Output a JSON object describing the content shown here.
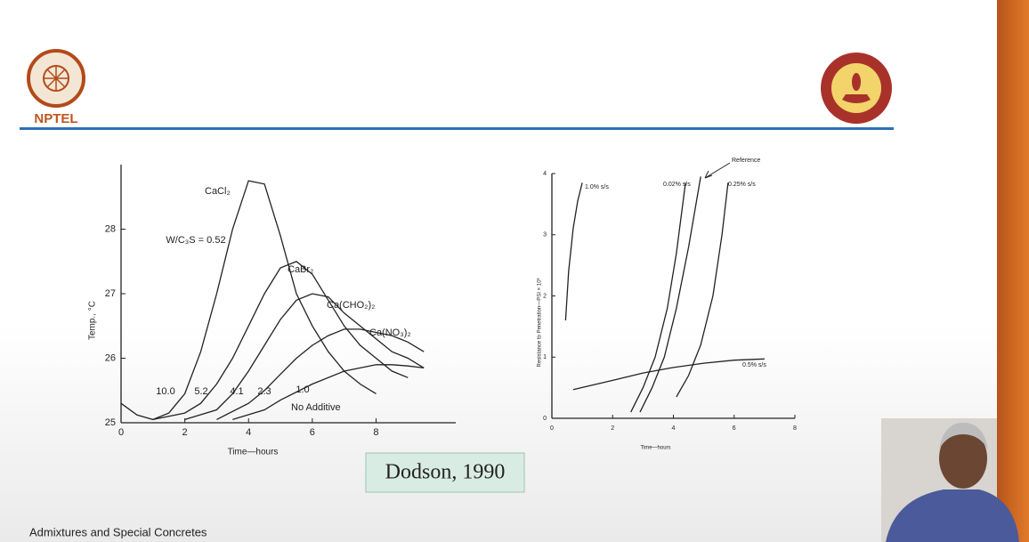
{
  "header": {
    "logo_text": "NPTEL"
  },
  "caption": "Dodson, 1990",
  "footer": "Admixtures and Special Concretes",
  "chart_data": [
    {
      "type": "line",
      "xlabel": "Time—hours",
      "ylabel": "Temp., °C",
      "xlim": [
        0,
        10.5
      ],
      "ylim": [
        25,
        29
      ],
      "xticks": [
        0,
        2,
        4,
        6,
        8
      ],
      "yticks": [
        25,
        26,
        27,
        28
      ],
      "annotations": [
        "W/C₃S = 0.52",
        "10.0",
        "5.2",
        "4.1",
        "2.3",
        "1.0"
      ],
      "series": [
        {
          "name": "CaCl₂",
          "color": "#222222",
          "x": [
            0,
            0.5,
            1,
            1.5,
            2,
            2.5,
            3,
            3.5,
            4,
            4.5,
            5,
            5.5,
            6,
            6.5,
            7,
            7.5,
            8
          ],
          "values": [
            25.3,
            25.12,
            25.05,
            25.15,
            25.45,
            26.1,
            27.0,
            28.0,
            28.75,
            28.7,
            27.9,
            27.0,
            26.5,
            26.1,
            25.8,
            25.6,
            25.45
          ]
        },
        {
          "name": "CaBr₂",
          "color": "#222222",
          "x": [
            1,
            2,
            2.5,
            3,
            3.5,
            4,
            4.5,
            5,
            5.5,
            6,
            6.5,
            7,
            7.5,
            8,
            8.5,
            9
          ],
          "values": [
            25.05,
            25.15,
            25.3,
            25.6,
            26.0,
            26.5,
            27.0,
            27.4,
            27.5,
            27.3,
            26.9,
            26.5,
            26.2,
            26.0,
            25.8,
            25.7
          ]
        },
        {
          "name": "Ca(CHO₂)₂",
          "color": "#222222",
          "x": [
            2,
            3,
            3.5,
            4,
            4.5,
            5,
            5.5,
            6,
            6.5,
            7,
            7.5,
            8,
            8.5,
            9,
            9.5
          ],
          "values": [
            25.05,
            25.2,
            25.45,
            25.8,
            26.2,
            26.6,
            26.9,
            27.0,
            26.95,
            26.7,
            26.5,
            26.3,
            26.1,
            26.0,
            25.85
          ]
        },
        {
          "name": "Ca(NO₃)₂",
          "color": "#222222",
          "x": [
            3,
            4,
            4.5,
            5,
            5.5,
            6,
            6.5,
            7,
            7.5,
            8,
            8.5,
            9,
            9.5
          ],
          "values": [
            25.05,
            25.3,
            25.5,
            25.75,
            26.0,
            26.2,
            26.35,
            26.45,
            26.45,
            26.4,
            26.35,
            26.25,
            26.1
          ]
        },
        {
          "name": "No Additive",
          "color": "#222222",
          "x": [
            3.5,
            4.5,
            5,
            6,
            7,
            8,
            8.5,
            9,
            9.5
          ],
          "values": [
            25.05,
            25.2,
            25.35,
            25.6,
            25.8,
            25.9,
            25.9,
            25.88,
            25.85
          ]
        }
      ]
    },
    {
      "type": "line",
      "xlabel": "Time—hours",
      "ylabel": "Resistance to Penetration—PSI × 10³",
      "xlim": [
        0,
        8
      ],
      "ylim": [
        0,
        4
      ],
      "xticks": [
        0,
        2,
        4,
        6,
        8
      ],
      "yticks": [
        0,
        1,
        2,
        3,
        4
      ],
      "series": [
        {
          "name": "1.0% s/s",
          "color": "#222222",
          "x": [
            0.45,
            0.55,
            0.7,
            0.85,
            1.0
          ],
          "values": [
            1.6,
            2.4,
            3.1,
            3.55,
            3.85
          ]
        },
        {
          "name": "0.02% s/s",
          "color": "#222222",
          "x": [
            2.6,
            3.0,
            3.4,
            3.8,
            4.1,
            4.4
          ],
          "values": [
            0.1,
            0.5,
            1.0,
            1.8,
            2.7,
            3.85
          ]
        },
        {
          "name": "Reference",
          "color": "#222222",
          "x": [
            2.9,
            3.3,
            3.7,
            4.1,
            4.5,
            4.9
          ],
          "values": [
            0.1,
            0.5,
            1.0,
            1.8,
            2.8,
            3.95
          ]
        },
        {
          "name": "0.25% s/s",
          "color": "#222222",
          "x": [
            4.1,
            4.5,
            4.9,
            5.3,
            5.6,
            5.8
          ],
          "values": [
            0.35,
            0.7,
            1.2,
            2.0,
            3.0,
            3.85
          ]
        },
        {
          "name": "0.5% s/s",
          "color": "#222222",
          "x": [
            0.7,
            2,
            3,
            4,
            5,
            6,
            7
          ],
          "values": [
            0.47,
            0.62,
            0.74,
            0.83,
            0.9,
            0.95,
            0.97
          ]
        }
      ]
    }
  ]
}
